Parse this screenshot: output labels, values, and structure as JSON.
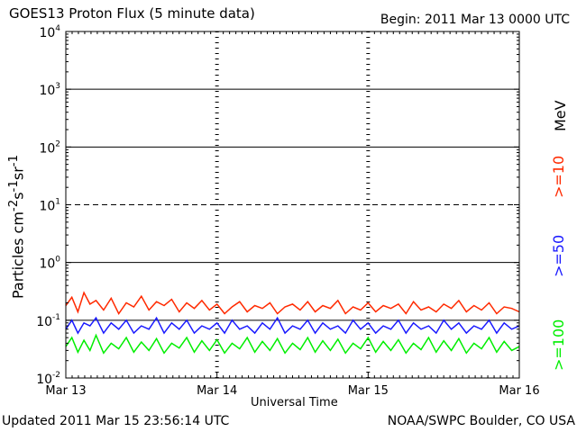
{
  "header": {
    "title": "GOES13 Proton Flux (5 minute data)",
    "begin": "Begin: 2011 Mar 13 0000 UTC"
  },
  "footer": {
    "updated": "Updated 2011 Mar 15 23:56:14 UTC",
    "credit": "NOAA/SWPC Boulder, CO USA"
  },
  "labels": {
    "unit": "MeV"
  },
  "colors": {
    "ge10": "#ff2a00",
    "ge50": "#1a1aff",
    "ge100": "#00ee00"
  },
  "chart_data": {
    "type": "line",
    "title": "GOES13 Proton Flux (5 minute data)",
    "xlabel": "Universal Time",
    "ylabel": "Particles cm-2s-1sr-1",
    "yscale": "log",
    "ylim": [
      0.01,
      10000
    ],
    "xlim": [
      0,
      3
    ],
    "x_ticks": [
      {
        "value": 0,
        "label": "Mar 13"
      },
      {
        "value": 1,
        "label": "Mar 14"
      },
      {
        "value": 2,
        "label": "Mar 15"
      },
      {
        "value": 3,
        "label": "Mar 16"
      }
    ],
    "y_ticks": [
      {
        "value": 10000,
        "base": "10",
        "exp": "4"
      },
      {
        "value": 1000,
        "base": "10",
        "exp": "3"
      },
      {
        "value": 100,
        "base": "10",
        "exp": "2"
      },
      {
        "value": 10,
        "base": "10",
        "exp": "1"
      },
      {
        "value": 1,
        "base": "10",
        "exp": "0"
      },
      {
        "value": 0.1,
        "base": "10",
        "exp": "-1"
      },
      {
        "value": 0.01,
        "base": "10",
        "exp": "-2"
      }
    ],
    "grid": true,
    "series": [
      {
        "name": ">=10",
        "color": "#ff2a00",
        "x": [
          0,
          0.04,
          0.08,
          0.12,
          0.16,
          0.2,
          0.25,
          0.3,
          0.35,
          0.4,
          0.45,
          0.5,
          0.55,
          0.6,
          0.65,
          0.7,
          0.75,
          0.8,
          0.85,
          0.9,
          0.95,
          1,
          1.05,
          1.1,
          1.15,
          1.2,
          1.25,
          1.3,
          1.35,
          1.4,
          1.45,
          1.5,
          1.55,
          1.6,
          1.65,
          1.7,
          1.75,
          1.8,
          1.85,
          1.9,
          1.95,
          2,
          2.05,
          2.1,
          2.15,
          2.2,
          2.25,
          2.3,
          2.35,
          2.4,
          2.45,
          2.5,
          2.55,
          2.6,
          2.65,
          2.7,
          2.75,
          2.8,
          2.85,
          2.9,
          2.95,
          3
        ],
        "values": [
          0.18,
          0.25,
          0.14,
          0.3,
          0.19,
          0.22,
          0.15,
          0.24,
          0.13,
          0.2,
          0.17,
          0.26,
          0.15,
          0.21,
          0.18,
          0.23,
          0.14,
          0.2,
          0.16,
          0.22,
          0.15,
          0.19,
          0.13,
          0.17,
          0.21,
          0.14,
          0.18,
          0.16,
          0.2,
          0.13,
          0.17,
          0.19,
          0.15,
          0.21,
          0.14,
          0.18,
          0.16,
          0.22,
          0.13,
          0.17,
          0.15,
          0.2,
          0.14,
          0.18,
          0.16,
          0.19,
          0.13,
          0.21,
          0.15,
          0.17,
          0.14,
          0.19,
          0.16,
          0.22,
          0.14,
          0.18,
          0.15,
          0.2,
          0.13,
          0.17,
          0.16,
          0.14
        ]
      },
      {
        "name": ">=50",
        "color": "#1a1aff",
        "x": [
          0,
          0.04,
          0.08,
          0.12,
          0.16,
          0.2,
          0.25,
          0.3,
          0.35,
          0.4,
          0.45,
          0.5,
          0.55,
          0.6,
          0.65,
          0.7,
          0.75,
          0.8,
          0.85,
          0.9,
          0.95,
          1,
          1.05,
          1.1,
          1.15,
          1.2,
          1.25,
          1.3,
          1.35,
          1.4,
          1.45,
          1.5,
          1.55,
          1.6,
          1.65,
          1.7,
          1.75,
          1.8,
          1.85,
          1.9,
          1.95,
          2,
          2.05,
          2.1,
          2.15,
          2.2,
          2.25,
          2.3,
          2.35,
          2.4,
          2.45,
          2.5,
          2.55,
          2.6,
          2.65,
          2.7,
          2.75,
          2.8,
          2.85,
          2.9,
          2.95,
          3
        ],
        "values": [
          0.07,
          0.1,
          0.06,
          0.09,
          0.08,
          0.11,
          0.06,
          0.09,
          0.07,
          0.1,
          0.06,
          0.08,
          0.07,
          0.11,
          0.06,
          0.09,
          0.07,
          0.1,
          0.06,
          0.08,
          0.07,
          0.09,
          0.06,
          0.1,
          0.07,
          0.08,
          0.06,
          0.09,
          0.07,
          0.11,
          0.06,
          0.08,
          0.07,
          0.1,
          0.06,
          0.09,
          0.07,
          0.08,
          0.06,
          0.1,
          0.07,
          0.09,
          0.06,
          0.08,
          0.07,
          0.1,
          0.06,
          0.09,
          0.07,
          0.08,
          0.06,
          0.1,
          0.07,
          0.09,
          0.06,
          0.08,
          0.07,
          0.1,
          0.06,
          0.09,
          0.07,
          0.08
        ]
      },
      {
        "name": ">=100",
        "color": "#00ee00",
        "x": [
          0,
          0.04,
          0.08,
          0.12,
          0.16,
          0.2,
          0.25,
          0.3,
          0.35,
          0.4,
          0.45,
          0.5,
          0.55,
          0.6,
          0.65,
          0.7,
          0.75,
          0.8,
          0.85,
          0.9,
          0.95,
          1,
          1.05,
          1.1,
          1.15,
          1.2,
          1.25,
          1.3,
          1.35,
          1.4,
          1.45,
          1.5,
          1.55,
          1.6,
          1.65,
          1.7,
          1.75,
          1.8,
          1.85,
          1.9,
          1.95,
          2,
          2.05,
          2.1,
          2.15,
          2.2,
          2.25,
          2.3,
          2.35,
          2.4,
          2.45,
          2.5,
          2.55,
          2.6,
          2.65,
          2.7,
          2.75,
          2.8,
          2.85,
          2.9,
          2.95,
          3
        ],
        "values": [
          0.035,
          0.05,
          0.028,
          0.045,
          0.03,
          0.055,
          0.027,
          0.04,
          0.032,
          0.05,
          0.028,
          0.042,
          0.03,
          0.048,
          0.027,
          0.04,
          0.033,
          0.05,
          0.028,
          0.044,
          0.03,
          0.046,
          0.027,
          0.04,
          0.032,
          0.05,
          0.028,
          0.043,
          0.03,
          0.048,
          0.027,
          0.04,
          0.031,
          0.05,
          0.028,
          0.044,
          0.03,
          0.047,
          0.027,
          0.04,
          0.032,
          0.05,
          0.028,
          0.043,
          0.03,
          0.046,
          0.027,
          0.04,
          0.031,
          0.05,
          0.028,
          0.044,
          0.03,
          0.048,
          0.027,
          0.04,
          0.032,
          0.05,
          0.028,
          0.043,
          0.03,
          0.035
        ]
      }
    ]
  }
}
